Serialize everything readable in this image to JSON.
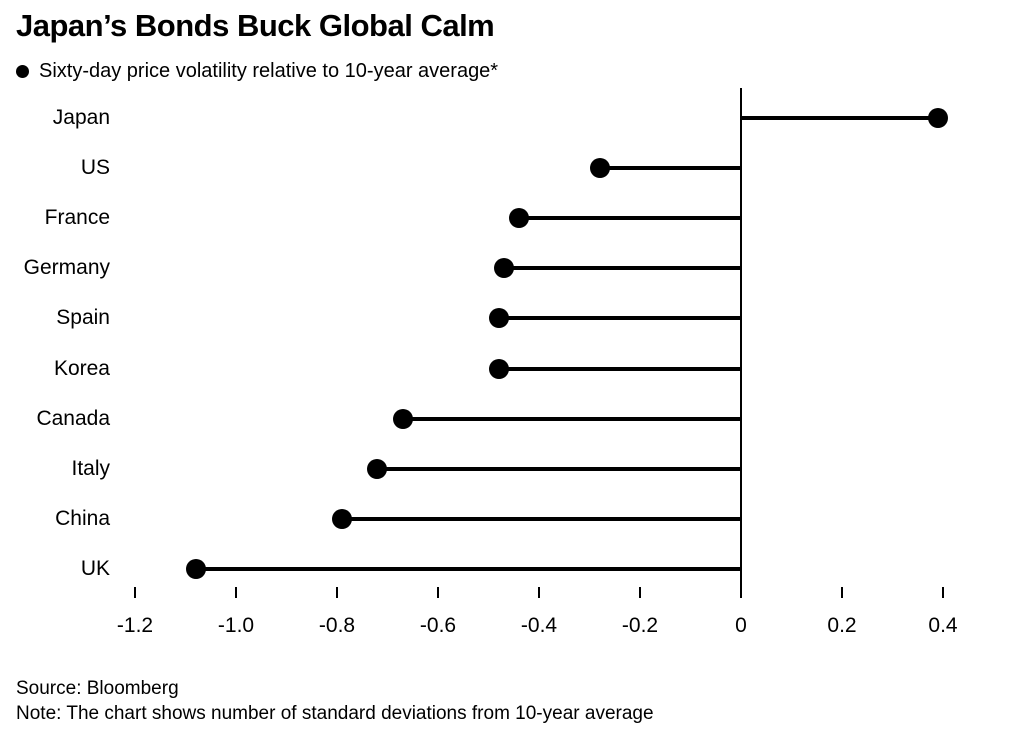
{
  "header": {
    "title": "Japan’s Bonds Buck Global Calm",
    "legend": "Sixty-day price volatility relative to 10-year average*"
  },
  "footer": {
    "source": "Source: Bloomberg",
    "note": "Note: The chart shows number of standard deviations from 10-year average"
  },
  "chart_data": {
    "type": "bar",
    "variant": "lollipop",
    "orientation": "horizontal",
    "title": "Japan’s Bonds Buck Global Calm",
    "subtitle": "Sixty-day price volatility relative to 10-year average*",
    "categories": [
      "Japan",
      "US",
      "France",
      "Germany",
      "Spain",
      "Korea",
      "Canada",
      "Italy",
      "China",
      "UK"
    ],
    "values": [
      0.39,
      -0.28,
      -0.44,
      -0.47,
      -0.48,
      -0.48,
      -0.67,
      -0.72,
      -0.79,
      -1.08
    ],
    "xlabel": "",
    "ylabel": "",
    "xlim": [
      -1.3,
      0.45
    ],
    "xticks": [
      -1.2,
      -1.0,
      -0.8,
      -0.6,
      -0.4,
      -0.2,
      0,
      0.2,
      0.4
    ],
    "xtick_labels": [
      "-1.2",
      "-1.0",
      "-0.8",
      "-0.6",
      "-0.4",
      "-0.2",
      "0",
      "0.2",
      "0.4"
    ],
    "grid": false,
    "legend_position": "top-left",
    "colors": {
      "dot": "#000000",
      "stem": "#000000",
      "axis": "#000000",
      "text": "#000000",
      "background": "#ffffff"
    },
    "units": "standard deviations from 10-year average"
  }
}
